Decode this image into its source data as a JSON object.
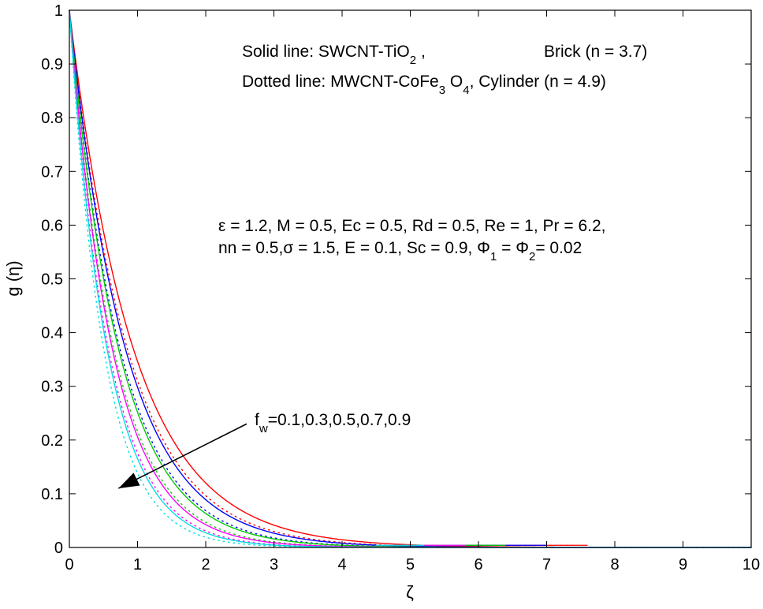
{
  "chart_data": {
    "type": "line",
    "xlabel": "ζ",
    "ylabel": "g (η)",
    "xlim": [
      0,
      10
    ],
    "ylim": [
      0,
      1
    ],
    "grid": false,
    "xticks": [
      "0",
      "1",
      "2",
      "3",
      "4",
      "5",
      "6",
      "7",
      "8",
      "9",
      "10"
    ],
    "yticks": [
      "0",
      "0.1",
      "0.2",
      "0.3",
      "0.4",
      "0.5",
      "0.6",
      "0.7",
      "0.8",
      "0.9",
      "1"
    ],
    "legend_text": {
      "solid_prefix": "Solid line:   SWCNT-TiO",
      "solid_sub": "2",
      "solid_suffix": " ,",
      "solid_shape": "Brick (n = 3.7)",
      "dotted_prefix": "Dotted line: MWCNT-CoFe",
      "dotted_sub1": "3",
      "dotted_mid": " O",
      "dotted_sub2": "4",
      "dotted_suffix": ", Cylinder (n = 4.9)"
    },
    "params": {
      "line1": "ε = 1.2, M = 0.5, Ec = 0.5, Rd = 0.5, Re = 1, Pr = 6.2,",
      "line2_a": "nn = 0.5,σ = 1.5, E = 0.1, Sc = 0.9, Φ",
      "line2_sub1": "1",
      "line2_b": " = Φ",
      "line2_sub2": "2",
      "line2_c": "= 0.02"
    },
    "annotation": {
      "prefix": "f",
      "sub": "w",
      "text": "=0.1,0.3,0.5,0.7,0.9",
      "arrow_from": [
        2.6,
        0.23
      ],
      "arrow_to": [
        0.72,
        0.11
      ]
    },
    "series": [
      {
        "fw": 0.1,
        "color": "#ff0000",
        "solid_decay": 1.06,
        "dotted_decay": 1.17,
        "solid_end": 7.6,
        "dotted_end": 7.4
      },
      {
        "fw": 0.3,
        "color": "#0000ff",
        "solid_decay": 1.21,
        "dotted_decay": 1.34,
        "solid_end": 7.0,
        "dotted_end": 6.8
      },
      {
        "fw": 0.5,
        "color": "#00cc00",
        "solid_decay": 1.38,
        "dotted_decay": 1.53,
        "solid_end": 6.4,
        "dotted_end": 6.2
      },
      {
        "fw": 0.7,
        "color": "#ff00ff",
        "solid_decay": 1.58,
        "dotted_decay": 1.74,
        "solid_end": 5.8,
        "dotted_end": 5.6
      },
      {
        "fw": 0.9,
        "color": "#00e0e0",
        "solid_decay": 1.8,
        "dotted_decay": 1.98,
        "solid_end": 5.2,
        "dotted_end": 5.0
      }
    ]
  }
}
